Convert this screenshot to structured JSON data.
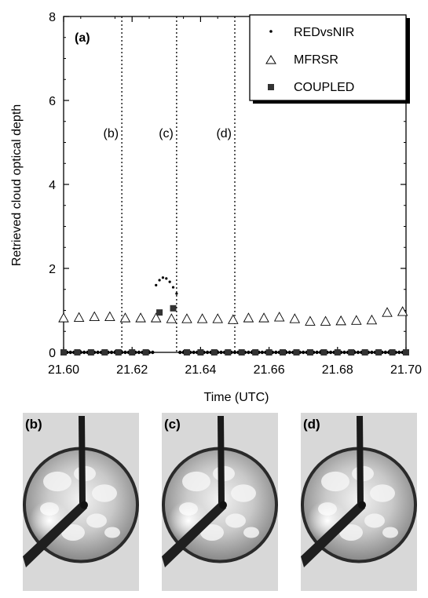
{
  "chart_data": {
    "type": "scatter",
    "panel_label": "(a)",
    "xlabel": "Time (UTC)",
    "ylabel": "Retrieved cloud optical depth",
    "xlim": [
      21.6,
      21.7
    ],
    "ylim": [
      0,
      8
    ],
    "x_ticks": [
      21.6,
      21.62,
      21.64,
      21.66,
      21.68,
      21.7
    ],
    "x_tick_labels": [
      "21.60",
      "21.62",
      "21.64",
      "21.66",
      "21.68",
      "21.70"
    ],
    "y_ticks": [
      0,
      2,
      4,
      6,
      8
    ],
    "y_tick_labels": [
      "0",
      "2",
      "4",
      "6",
      "8"
    ],
    "grid": false,
    "legend_position": "top-right",
    "vlines": [
      {
        "x": 21.617,
        "label": "(b)"
      },
      {
        "x": 21.633,
        "label": "(c)"
      },
      {
        "x": 21.65,
        "label": "(d)"
      }
    ],
    "series": [
      {
        "name": "REDvsNIR",
        "marker": "dot",
        "x": [
          21.6,
          21.601,
          21.602,
          21.603,
          21.604,
          21.605,
          21.606,
          21.607,
          21.608,
          21.609,
          21.61,
          21.611,
          21.612,
          21.613,
          21.614,
          21.615,
          21.616,
          21.617,
          21.618,
          21.619,
          21.62,
          21.621,
          21.622,
          21.623,
          21.624,
          21.625,
          21.626,
          21.627,
          21.628,
          21.629,
          21.63,
          21.631,
          21.632,
          21.633,
          21.634,
          21.635,
          21.636,
          21.637,
          21.638,
          21.639,
          21.64,
          21.641,
          21.642,
          21.643,
          21.644,
          21.645,
          21.646,
          21.647,
          21.648,
          21.649,
          21.65,
          21.651,
          21.652,
          21.653,
          21.654,
          21.655,
          21.656,
          21.657,
          21.658,
          21.659,
          21.66,
          21.661,
          21.662,
          21.663,
          21.664,
          21.665,
          21.666,
          21.667,
          21.668,
          21.669,
          21.67,
          21.671,
          21.672,
          21.673,
          21.674,
          21.675,
          21.676,
          21.677,
          21.678,
          21.679,
          21.68,
          21.681,
          21.682,
          21.683,
          21.684,
          21.685,
          21.686,
          21.687,
          21.688,
          21.689,
          21.69,
          21.691,
          21.692,
          21.693,
          21.694,
          21.695,
          21.696,
          21.697,
          21.698,
          21.699,
          21.7
        ],
        "y": [
          0,
          0,
          0,
          0,
          0,
          0,
          0,
          0,
          0,
          0,
          0,
          0,
          0,
          0,
          0,
          0,
          0,
          0,
          0,
          0,
          0,
          0,
          0,
          0,
          0,
          0,
          0,
          1.6,
          1.72,
          1.78,
          1.76,
          1.68,
          1.55,
          1.4,
          0,
          0,
          0,
          0,
          0,
          0,
          0,
          0,
          0,
          0,
          0,
          0,
          0,
          0,
          0,
          0,
          0,
          0,
          0,
          0,
          0,
          0,
          0,
          0,
          0,
          0,
          0,
          0,
          0,
          0,
          0,
          0,
          0,
          0,
          0,
          0,
          0,
          0,
          0,
          0,
          0,
          0,
          0,
          0,
          0,
          0,
          0,
          0,
          0,
          0,
          0,
          0,
          0,
          0,
          0,
          0,
          0,
          0,
          0,
          0,
          0,
          0,
          0,
          0,
          0,
          0,
          0
        ]
      },
      {
        "name": "MFRSR",
        "marker": "triangle-open",
        "x": [
          21.6,
          21.6045,
          21.609,
          21.6135,
          21.618,
          21.6225,
          21.627,
          21.6315,
          21.636,
          21.6405,
          21.645,
          21.6495,
          21.654,
          21.6585,
          21.663,
          21.6675,
          21.672,
          21.6765,
          21.681,
          21.6855,
          21.69,
          21.6945,
          21.699
        ],
        "y": [
          0.82,
          0.83,
          0.85,
          0.85,
          0.82,
          0.82,
          0.82,
          0.8,
          0.8,
          0.8,
          0.8,
          0.78,
          0.82,
          0.82,
          0.84,
          0.8,
          0.74,
          0.74,
          0.75,
          0.76,
          0.77,
          0.95,
          0.97
        ]
      },
      {
        "name": "COUPLED",
        "marker": "square-filled",
        "x": [
          21.6,
          21.604,
          21.608,
          21.612,
          21.616,
          21.62,
          21.624,
          21.628,
          21.632,
          21.636,
          21.64,
          21.644,
          21.648,
          21.652,
          21.656,
          21.66,
          21.664,
          21.668,
          21.672,
          21.676,
          21.68,
          21.684,
          21.688,
          21.692,
          21.696,
          21.7
        ],
        "y": [
          0,
          0,
          0,
          0,
          0,
          0,
          0,
          0.95,
          1.05,
          0,
          0,
          0,
          0,
          0,
          0,
          0,
          0,
          0,
          0,
          0,
          0,
          0,
          0,
          0,
          0,
          0
        ]
      }
    ]
  },
  "photos": {
    "labels": [
      "(b)",
      "(c)",
      "(d)"
    ]
  }
}
